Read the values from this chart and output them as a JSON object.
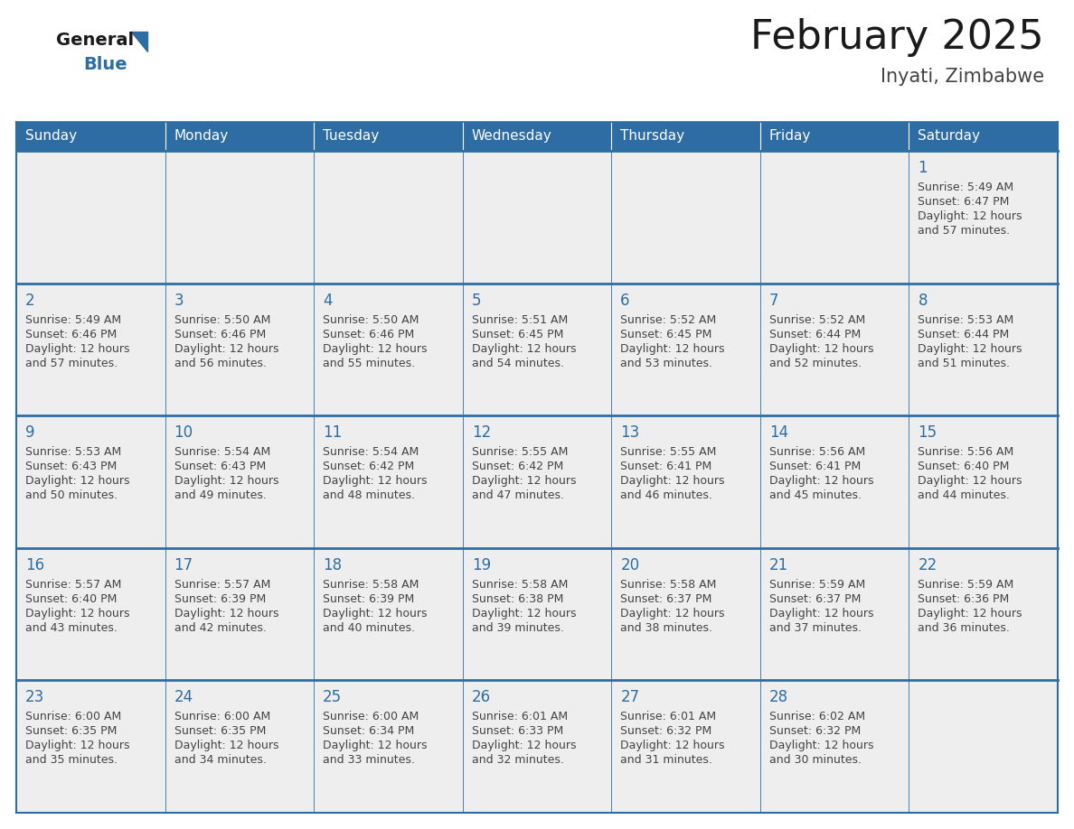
{
  "title": "February 2025",
  "subtitle": "Inyati, Zimbabwe",
  "header_color": "#2E6DA4",
  "header_text_color": "#FFFFFF",
  "cell_bg_even": "#EFEFEF",
  "cell_bg_odd": "#FFFFFF",
  "cell_border_color": "#2E6DA4",
  "day_number_color": "#2E6DA4",
  "info_text_color": "#444444",
  "row_separator_color": "#2E6DA4",
  "days_of_week": [
    "Sunday",
    "Monday",
    "Tuesday",
    "Wednesday",
    "Thursday",
    "Friday",
    "Saturday"
  ],
  "calendar_data": [
    [
      null,
      null,
      null,
      null,
      null,
      null,
      {
        "day": 1,
        "sunrise": "5:49 AM",
        "sunset": "6:47 PM",
        "daylight": "12 hours\nand 57 minutes."
      }
    ],
    [
      {
        "day": 2,
        "sunrise": "5:49 AM",
        "sunset": "6:46 PM",
        "daylight": "12 hours\nand 57 minutes."
      },
      {
        "day": 3,
        "sunrise": "5:50 AM",
        "sunset": "6:46 PM",
        "daylight": "12 hours\nand 56 minutes."
      },
      {
        "day": 4,
        "sunrise": "5:50 AM",
        "sunset": "6:46 PM",
        "daylight": "12 hours\nand 55 minutes."
      },
      {
        "day": 5,
        "sunrise": "5:51 AM",
        "sunset": "6:45 PM",
        "daylight": "12 hours\nand 54 minutes."
      },
      {
        "day": 6,
        "sunrise": "5:52 AM",
        "sunset": "6:45 PM",
        "daylight": "12 hours\nand 53 minutes."
      },
      {
        "day": 7,
        "sunrise": "5:52 AM",
        "sunset": "6:44 PM",
        "daylight": "12 hours\nand 52 minutes."
      },
      {
        "day": 8,
        "sunrise": "5:53 AM",
        "sunset": "6:44 PM",
        "daylight": "12 hours\nand 51 minutes."
      }
    ],
    [
      {
        "day": 9,
        "sunrise": "5:53 AM",
        "sunset": "6:43 PM",
        "daylight": "12 hours\nand 50 minutes."
      },
      {
        "day": 10,
        "sunrise": "5:54 AM",
        "sunset": "6:43 PM",
        "daylight": "12 hours\nand 49 minutes."
      },
      {
        "day": 11,
        "sunrise": "5:54 AM",
        "sunset": "6:42 PM",
        "daylight": "12 hours\nand 48 minutes."
      },
      {
        "day": 12,
        "sunrise": "5:55 AM",
        "sunset": "6:42 PM",
        "daylight": "12 hours\nand 47 minutes."
      },
      {
        "day": 13,
        "sunrise": "5:55 AM",
        "sunset": "6:41 PM",
        "daylight": "12 hours\nand 46 minutes."
      },
      {
        "day": 14,
        "sunrise": "5:56 AM",
        "sunset": "6:41 PM",
        "daylight": "12 hours\nand 45 minutes."
      },
      {
        "day": 15,
        "sunrise": "5:56 AM",
        "sunset": "6:40 PM",
        "daylight": "12 hours\nand 44 minutes."
      }
    ],
    [
      {
        "day": 16,
        "sunrise": "5:57 AM",
        "sunset": "6:40 PM",
        "daylight": "12 hours\nand 43 minutes."
      },
      {
        "day": 17,
        "sunrise": "5:57 AM",
        "sunset": "6:39 PM",
        "daylight": "12 hours\nand 42 minutes."
      },
      {
        "day": 18,
        "sunrise": "5:58 AM",
        "sunset": "6:39 PM",
        "daylight": "12 hours\nand 40 minutes."
      },
      {
        "day": 19,
        "sunrise": "5:58 AM",
        "sunset": "6:38 PM",
        "daylight": "12 hours\nand 39 minutes."
      },
      {
        "day": 20,
        "sunrise": "5:58 AM",
        "sunset": "6:37 PM",
        "daylight": "12 hours\nand 38 minutes."
      },
      {
        "day": 21,
        "sunrise": "5:59 AM",
        "sunset": "6:37 PM",
        "daylight": "12 hours\nand 37 minutes."
      },
      {
        "day": 22,
        "sunrise": "5:59 AM",
        "sunset": "6:36 PM",
        "daylight": "12 hours\nand 36 minutes."
      }
    ],
    [
      {
        "day": 23,
        "sunrise": "6:00 AM",
        "sunset": "6:35 PM",
        "daylight": "12 hours\nand 35 minutes."
      },
      {
        "day": 24,
        "sunrise": "6:00 AM",
        "sunset": "6:35 PM",
        "daylight": "12 hours\nand 34 minutes."
      },
      {
        "day": 25,
        "sunrise": "6:00 AM",
        "sunset": "6:34 PM",
        "daylight": "12 hours\nand 33 minutes."
      },
      {
        "day": 26,
        "sunrise": "6:01 AM",
        "sunset": "6:33 PM",
        "daylight": "12 hours\nand 32 minutes."
      },
      {
        "day": 27,
        "sunrise": "6:01 AM",
        "sunset": "6:32 PM",
        "daylight": "12 hours\nand 31 minutes."
      },
      {
        "day": 28,
        "sunrise": "6:02 AM",
        "sunset": "6:32 PM",
        "daylight": "12 hours\nand 30 minutes."
      },
      null
    ]
  ]
}
